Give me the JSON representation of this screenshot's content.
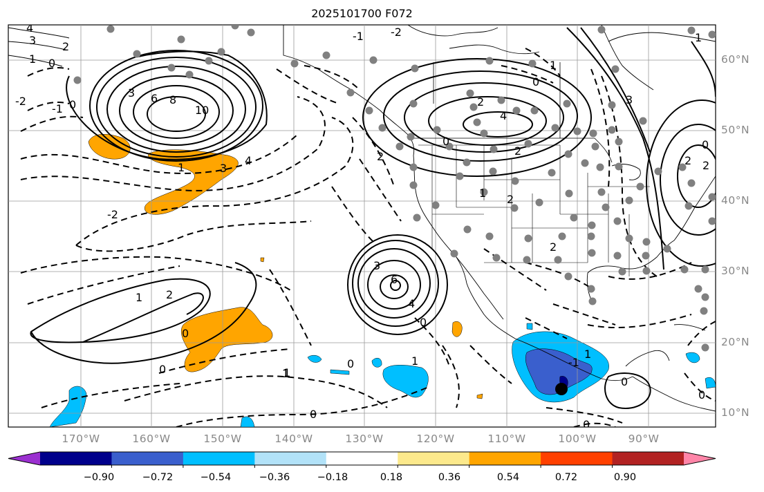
{
  "title": "2025101700 F072",
  "map": {
    "lat_labels": [
      {
        "label": "60°N",
        "lat": 60
      },
      {
        "label": "50°N",
        "lat": 50
      },
      {
        "label": "40°N",
        "lat": 40
      },
      {
        "label": "30°N",
        "lat": 30
      },
      {
        "label": "20°N",
        "lat": 20
      },
      {
        "label": "10°N",
        "lat": 10
      }
    ],
    "lon_labels": [
      {
        "label": "170°W",
        "lon": -170
      },
      {
        "label": "160°W",
        "lon": -160
      },
      {
        "label": "150°W",
        "lon": -150
      },
      {
        "label": "140°W",
        "lon": -140
      },
      {
        "label": "130°W",
        "lon": -130
      },
      {
        "label": "120°W",
        "lon": -120
      },
      {
        "label": "110°W",
        "lon": -110
      },
      {
        "label": "100°W",
        "lon": -100
      },
      {
        "label": "90°W",
        "lon": -90
      }
    ],
    "contour_labels": [
      "4",
      "3",
      "2",
      "1",
      "0",
      "-2",
      "-1",
      "0",
      "3",
      "6",
      "8",
      "10",
      "1",
      "3",
      "4",
      "-2",
      "1",
      "0",
      "1",
      "2",
      "3",
      "4",
      "2",
      "2",
      "-2",
      "2",
      "1",
      "0",
      "3",
      "-1",
      "2",
      "1",
      "0",
      "2",
      "1",
      "6",
      "4",
      "0",
      "0",
      "0",
      "0",
      "1",
      "1",
      "0",
      "2",
      "1",
      "0",
      "2",
      "0",
      "-1",
      "0"
    ]
  },
  "colorbar": {
    "ticks": [
      "−0.90",
      "−0.72",
      "−0.54",
      "−0.36",
      "−0.18",
      "0.18",
      "0.36",
      "0.54",
      "0.72",
      "0.90"
    ],
    "colors": [
      "#9b30d0",
      "#00008b",
      "#3a5fcd",
      "#00bfff",
      "#b2e2f8",
      "#ffffff",
      "#fce98c",
      "#ffa500",
      "#ff4000",
      "#b22222",
      "#ff85a8"
    ]
  }
}
